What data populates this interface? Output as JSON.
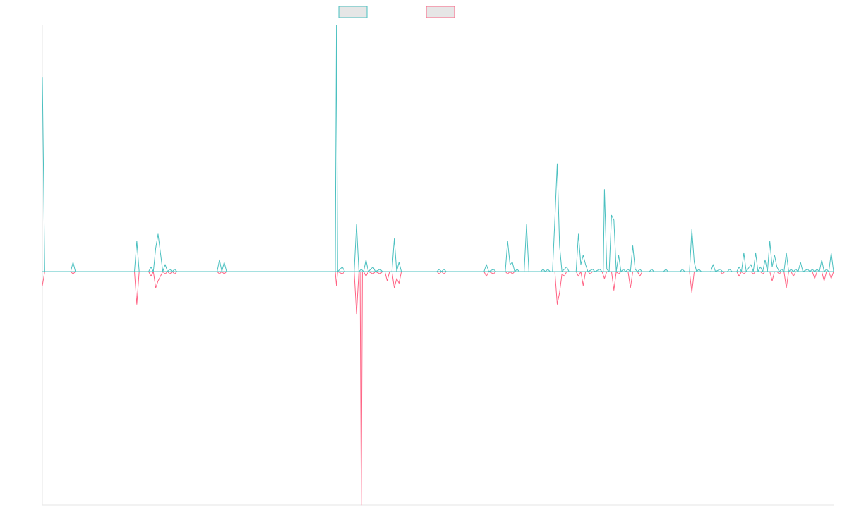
{
  "chart_data": {
    "type": "line",
    "title": "",
    "xlabel": "",
    "ylabel": "",
    "x_range": [
      0,
      335
    ],
    "y_range": [
      -100,
      105
    ],
    "grid": false,
    "show_tick_labels": false,
    "legend": {
      "placement": "top-center",
      "entries": [
        {
          "name": "",
          "color": "#4bc0c0"
        },
        {
          "name": "",
          "color": "#ff6384"
        }
      ]
    },
    "series": [
      {
        "name": "",
        "color": "#4bc0c0",
        "style": "positive-spikes",
        "points": [
          [
            0,
            83
          ],
          [
            1,
            0
          ],
          [
            12,
            0
          ],
          [
            13,
            4
          ],
          [
            14,
            0
          ],
          [
            39,
            0
          ],
          [
            40,
            13
          ],
          [
            41,
            0
          ],
          [
            45,
            0
          ],
          [
            46,
            2
          ],
          [
            47,
            0
          ],
          [
            48,
            10
          ],
          [
            49,
            16
          ],
          [
            50,
            8
          ],
          [
            51,
            0
          ],
          [
            52,
            3
          ],
          [
            53,
            0
          ],
          [
            54,
            1
          ],
          [
            55,
            0
          ],
          [
            56,
            1
          ],
          [
            57,
            0
          ],
          [
            74,
            0
          ],
          [
            75,
            5
          ],
          [
            76,
            0
          ],
          [
            77,
            4
          ],
          [
            78,
            0
          ],
          [
            124,
            0
          ],
          [
            124.5,
            105
          ],
          [
            125,
            0
          ],
          [
            127,
            2
          ],
          [
            128,
            0
          ],
          [
            132,
            0
          ],
          [
            133,
            20
          ],
          [
            134,
            0
          ],
          [
            135,
            1
          ],
          [
            136,
            0
          ],
          [
            137,
            5
          ],
          [
            138,
            0
          ],
          [
            140,
            2
          ],
          [
            141,
            0
          ],
          [
            143,
            1
          ],
          [
            144,
            0
          ],
          [
            148,
            0
          ],
          [
            149,
            14
          ],
          [
            150,
            0
          ],
          [
            151,
            4
          ],
          [
            152,
            0
          ],
          [
            167,
            0
          ],
          [
            168,
            1
          ],
          [
            169,
            0
          ],
          [
            170,
            1
          ],
          [
            171,
            0
          ],
          [
            187,
            0
          ],
          [
            188,
            3
          ],
          [
            189,
            0
          ],
          [
            191,
            1
          ],
          [
            192,
            0
          ],
          [
            196,
            0
          ],
          [
            197,
            13
          ],
          [
            198,
            3
          ],
          [
            199,
            4
          ],
          [
            200,
            0
          ],
          [
            201,
            1
          ],
          [
            202,
            0
          ],
          [
            204,
            0
          ],
          [
            205,
            20
          ],
          [
            206,
            0
          ],
          [
            211,
            0
          ],
          [
            212,
            1
          ],
          [
            213,
            0
          ],
          [
            214,
            1
          ],
          [
            215,
            0
          ],
          [
            216,
            0
          ],
          [
            217,
            22
          ],
          [
            218,
            46
          ],
          [
            219,
            11
          ],
          [
            220,
            0
          ],
          [
            221,
            1
          ],
          [
            222,
            2
          ],
          [
            223,
            0
          ],
          [
            226,
            0
          ],
          [
            227,
            16
          ],
          [
            228,
            3
          ],
          [
            229,
            7
          ],
          [
            230,
            3
          ],
          [
            231,
            0
          ],
          [
            233,
            1
          ],
          [
            234,
            0
          ],
          [
            236,
            1
          ],
          [
            237,
            0
          ],
          [
            237.5,
            0
          ],
          [
            238,
            35
          ],
          [
            239,
            1
          ],
          [
            240,
            0
          ],
          [
            241,
            24
          ],
          [
            242,
            22
          ],
          [
            243,
            0
          ],
          [
            244,
            7
          ],
          [
            245,
            0
          ],
          [
            246,
            1
          ],
          [
            247,
            0
          ],
          [
            248,
            1
          ],
          [
            249,
            0
          ],
          [
            250,
            11
          ],
          [
            251,
            1
          ],
          [
            252,
            0
          ],
          [
            253,
            1
          ],
          [
            254,
            0
          ],
          [
            257,
            0
          ],
          [
            258,
            1
          ],
          [
            259,
            0
          ],
          [
            263,
            0
          ],
          [
            264,
            1
          ],
          [
            265,
            0
          ],
          [
            270,
            0
          ],
          [
            271,
            1
          ],
          [
            272,
            0
          ],
          [
            274,
            0
          ],
          [
            275,
            18
          ],
          [
            276,
            4
          ],
          [
            277,
            0
          ],
          [
            278,
            1
          ],
          [
            279,
            0
          ],
          [
            283,
            0
          ],
          [
            284,
            3
          ],
          [
            285,
            0
          ],
          [
            287,
            1
          ],
          [
            288,
            0
          ],
          [
            290,
            0
          ],
          [
            291,
            1
          ],
          [
            292,
            0
          ],
          [
            294,
            0
          ],
          [
            295,
            2
          ],
          [
            296,
            0
          ],
          [
            297,
            8
          ],
          [
            298,
            0
          ],
          [
            300,
            3
          ],
          [
            301,
            0
          ],
          [
            302,
            8
          ],
          [
            303,
            0
          ],
          [
            304,
            2
          ],
          [
            305,
            0
          ],
          [
            306,
            5
          ],
          [
            307,
            0
          ],
          [
            308,
            13
          ],
          [
            309,
            2
          ],
          [
            310,
            7
          ],
          [
            311,
            2
          ],
          [
            312,
            0
          ],
          [
            313,
            1
          ],
          [
            314,
            0
          ],
          [
            315,
            8
          ],
          [
            316,
            0
          ],
          [
            317,
            1
          ],
          [
            318,
            0
          ],
          [
            319,
            1
          ],
          [
            320,
            0
          ],
          [
            321,
            4
          ],
          [
            322,
            0
          ],
          [
            324,
            1
          ],
          [
            325,
            0
          ],
          [
            326,
            1
          ],
          [
            327,
            0
          ],
          [
            328,
            1
          ],
          [
            329,
            0
          ],
          [
            330,
            5
          ],
          [
            331,
            0
          ],
          [
            332,
            1
          ],
          [
            333,
            0
          ],
          [
            334,
            8
          ],
          [
            335,
            0
          ]
        ]
      },
      {
        "name": "",
        "color": "#ff6384",
        "style": "negative-spikes",
        "points": [
          [
            0,
            -6
          ],
          [
            1,
            0
          ],
          [
            12,
            0
          ],
          [
            13,
            -1
          ],
          [
            14,
            0
          ],
          [
            39,
            0
          ],
          [
            40,
            -14
          ],
          [
            41,
            0
          ],
          [
            45,
            0
          ],
          [
            46,
            -2
          ],
          [
            47,
            0
          ],
          [
            48,
            -7
          ],
          [
            49,
            -4
          ],
          [
            50,
            -2
          ],
          [
            51,
            0
          ],
          [
            52,
            -1
          ],
          [
            53,
            0
          ],
          [
            54,
            -1
          ],
          [
            55,
            0
          ],
          [
            56,
            -1
          ],
          [
            57,
            0
          ],
          [
            74,
            0
          ],
          [
            75,
            -1
          ],
          [
            76,
            0
          ],
          [
            77,
            -1
          ],
          [
            78,
            0
          ],
          [
            124,
            0
          ],
          [
            124.5,
            -6
          ],
          [
            125,
            0
          ],
          [
            127,
            -1
          ],
          [
            128,
            0
          ],
          [
            132,
            0
          ],
          [
            133,
            -18
          ],
          [
            134,
            0
          ],
          [
            134.5,
            0
          ],
          [
            135,
            -100
          ],
          [
            135.5,
            0
          ],
          [
            136,
            0
          ],
          [
            137,
            -2
          ],
          [
            138,
            0
          ],
          [
            140,
            -1
          ],
          [
            141,
            0
          ],
          [
            143,
            -1
          ],
          [
            144,
            0
          ],
          [
            145,
            0
          ],
          [
            146,
            -4
          ],
          [
            147,
            0
          ],
          [
            148,
            0
          ],
          [
            149,
            -7
          ],
          [
            150,
            -3
          ],
          [
            151,
            -5
          ],
          [
            152,
            0
          ],
          [
            167,
            0
          ],
          [
            168,
            -1
          ],
          [
            169,
            0
          ],
          [
            170,
            -1
          ],
          [
            171,
            0
          ],
          [
            187,
            0
          ],
          [
            188,
            -2
          ],
          [
            189,
            0
          ],
          [
            191,
            -1
          ],
          [
            192,
            0
          ],
          [
            196,
            0
          ],
          [
            197,
            -1
          ],
          [
            198,
            0
          ],
          [
            199,
            -1
          ],
          [
            200,
            0
          ],
          [
            217,
            0
          ],
          [
            218,
            -14
          ],
          [
            219,
            -9
          ],
          [
            220,
            -1
          ],
          [
            221,
            -2
          ],
          [
            222,
            0
          ],
          [
            226,
            0
          ],
          [
            227,
            -2
          ],
          [
            228,
            0
          ],
          [
            229,
            -6
          ],
          [
            230,
            0
          ],
          [
            231,
            0
          ],
          [
            232,
            -1
          ],
          [
            233,
            0
          ],
          [
            237,
            0
          ],
          [
            238,
            -3
          ],
          [
            239,
            0
          ],
          [
            241,
            0
          ],
          [
            242,
            -8
          ],
          [
            243,
            0
          ],
          [
            244,
            -1
          ],
          [
            245,
            0
          ],
          [
            248,
            0
          ],
          [
            249,
            -7
          ],
          [
            250,
            0
          ],
          [
            252,
            0
          ],
          [
            253,
            -2
          ],
          [
            254,
            0
          ],
          [
            274,
            0
          ],
          [
            275,
            -9
          ],
          [
            276,
            0
          ],
          [
            287,
            0
          ],
          [
            288,
            -1
          ],
          [
            289,
            0
          ],
          [
            294,
            0
          ],
          [
            295,
            -2
          ],
          [
            296,
            0
          ],
          [
            297,
            -1
          ],
          [
            298,
            0
          ],
          [
            300,
            0
          ],
          [
            301,
            -1
          ],
          [
            302,
            0
          ],
          [
            304,
            0
          ],
          [
            305,
            -1
          ],
          [
            306,
            0
          ],
          [
            308,
            0
          ],
          [
            309,
            -4
          ],
          [
            310,
            0
          ],
          [
            311,
            0
          ],
          [
            312,
            -1
          ],
          [
            313,
            0
          ],
          [
            314,
            0
          ],
          [
            315,
            -7
          ],
          [
            316,
            0
          ],
          [
            317,
            0
          ],
          [
            318,
            -2
          ],
          [
            319,
            0
          ],
          [
            326,
            0
          ],
          [
            327,
            -3
          ],
          [
            328,
            0
          ],
          [
            330,
            0
          ],
          [
            331,
            -4
          ],
          [
            332,
            0
          ],
          [
            333,
            0
          ],
          [
            334,
            -3
          ],
          [
            335,
            0
          ]
        ]
      }
    ]
  }
}
